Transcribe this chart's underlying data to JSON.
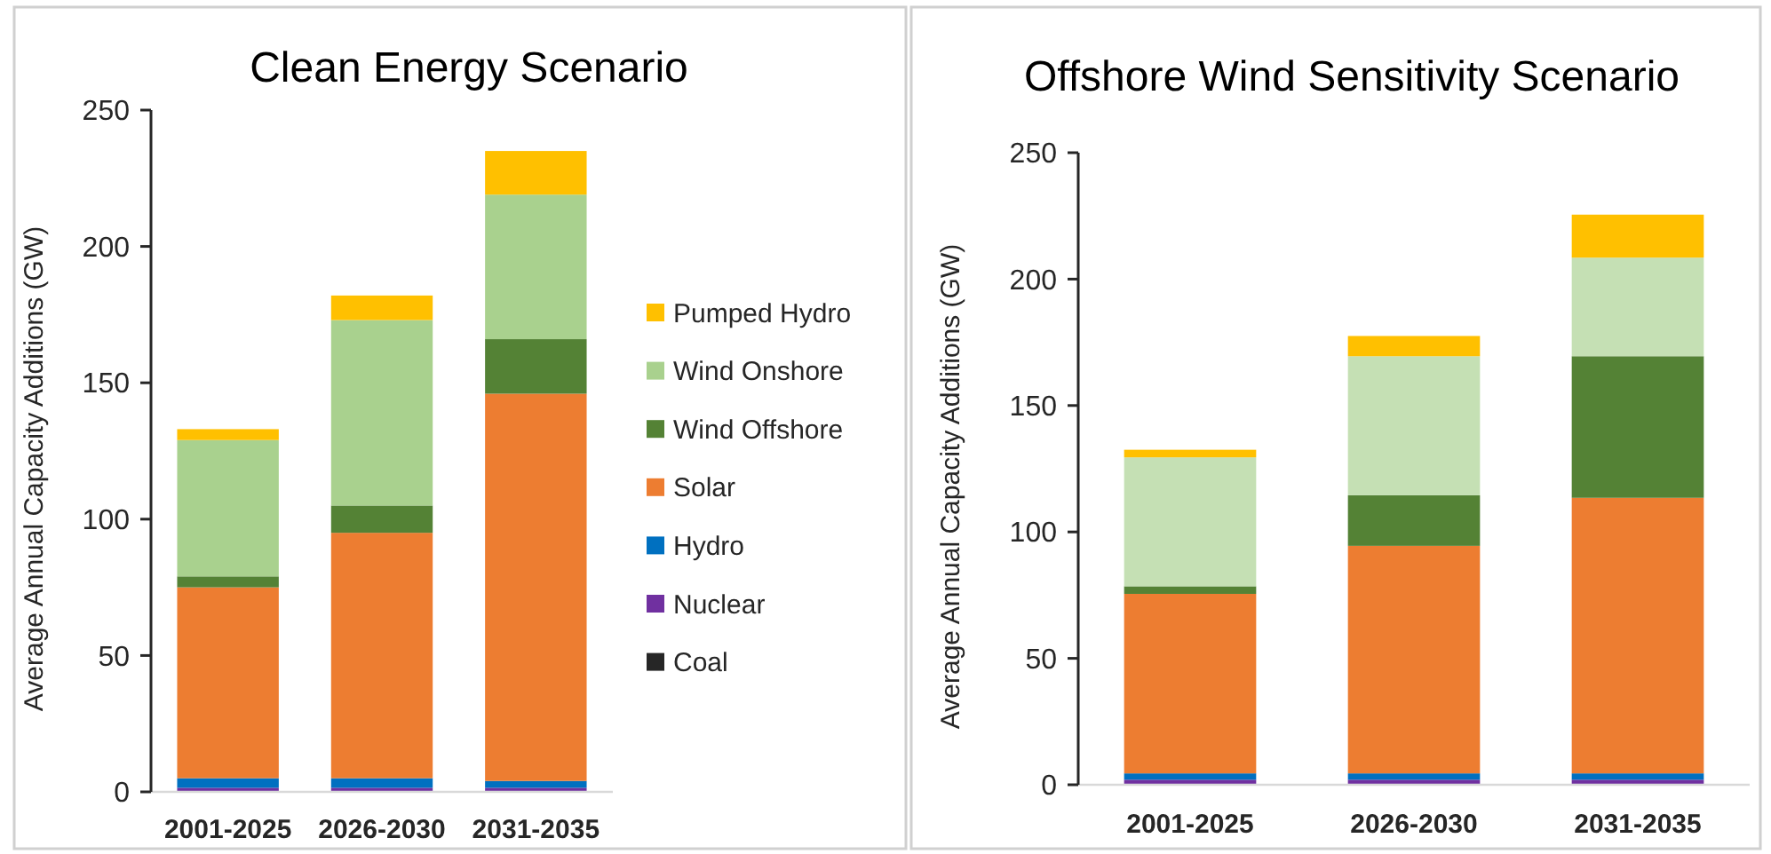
{
  "chart_data": [
    {
      "type": "bar",
      "title": "Clean Energy Scenario",
      "ylabel": "Average Annual Capacity Additions (GW)",
      "categories": [
        "2001-2025",
        "2026-2030",
        "2031-2035"
      ],
      "stacked": true,
      "ylim": [
        0,
        250
      ],
      "yticks": [
        0,
        50,
        100,
        150,
        200,
        250
      ],
      "grid": false,
      "legend": "right",
      "series": [
        {
          "name": "Coal",
          "color": "#262626",
          "values": [
            0,
            0,
            0
          ]
        },
        {
          "name": "Nuclear",
          "color": "#7030a0",
          "values": [
            1.5,
            1.5,
            1.5
          ]
        },
        {
          "name": "Hydro",
          "color": "#0070c0",
          "values": [
            3.5,
            3.5,
            2.5
          ]
        },
        {
          "name": "Solar",
          "color": "#ed7d31",
          "values": [
            70,
            90,
            142
          ]
        },
        {
          "name": "Wind Offshore",
          "color": "#548235",
          "values": [
            4,
            10,
            20
          ]
        },
        {
          "name": "Wind Onshore",
          "color": "#a9d18e",
          "values": [
            50,
            68,
            53
          ]
        },
        {
          "name": "Pumped Hydro",
          "color": "#ffc000",
          "values": [
            4,
            9,
            16
          ]
        }
      ]
    },
    {
      "type": "bar",
      "title": "Offshore Wind Sensitivity Scenario",
      "ylabel": "Average Annual Capacity Additions (GW)",
      "categories": [
        "2001-2025",
        "2026-2030",
        "2031-2035"
      ],
      "stacked": true,
      "ylim": [
        0,
        250
      ],
      "yticks": [
        0,
        50,
        100,
        150,
        200,
        250
      ],
      "grid": false,
      "series": [
        {
          "color": "#7030a0",
          "values": [
            2,
            2,
            2
          ]
        },
        {
          "color": "#0070c0",
          "values": [
            2.5,
            2.5,
            2.5
          ]
        },
        {
          "color": "#ed7d31",
          "values": [
            71,
            90,
            109
          ]
        },
        {
          "color": "#548235",
          "values": [
            3,
            20,
            56
          ]
        },
        {
          "color": "#c5e0b4",
          "values": [
            51,
            55,
            39
          ]
        },
        {
          "color": "#ffc000",
          "values": [
            3,
            8,
            17
          ]
        }
      ]
    }
  ]
}
